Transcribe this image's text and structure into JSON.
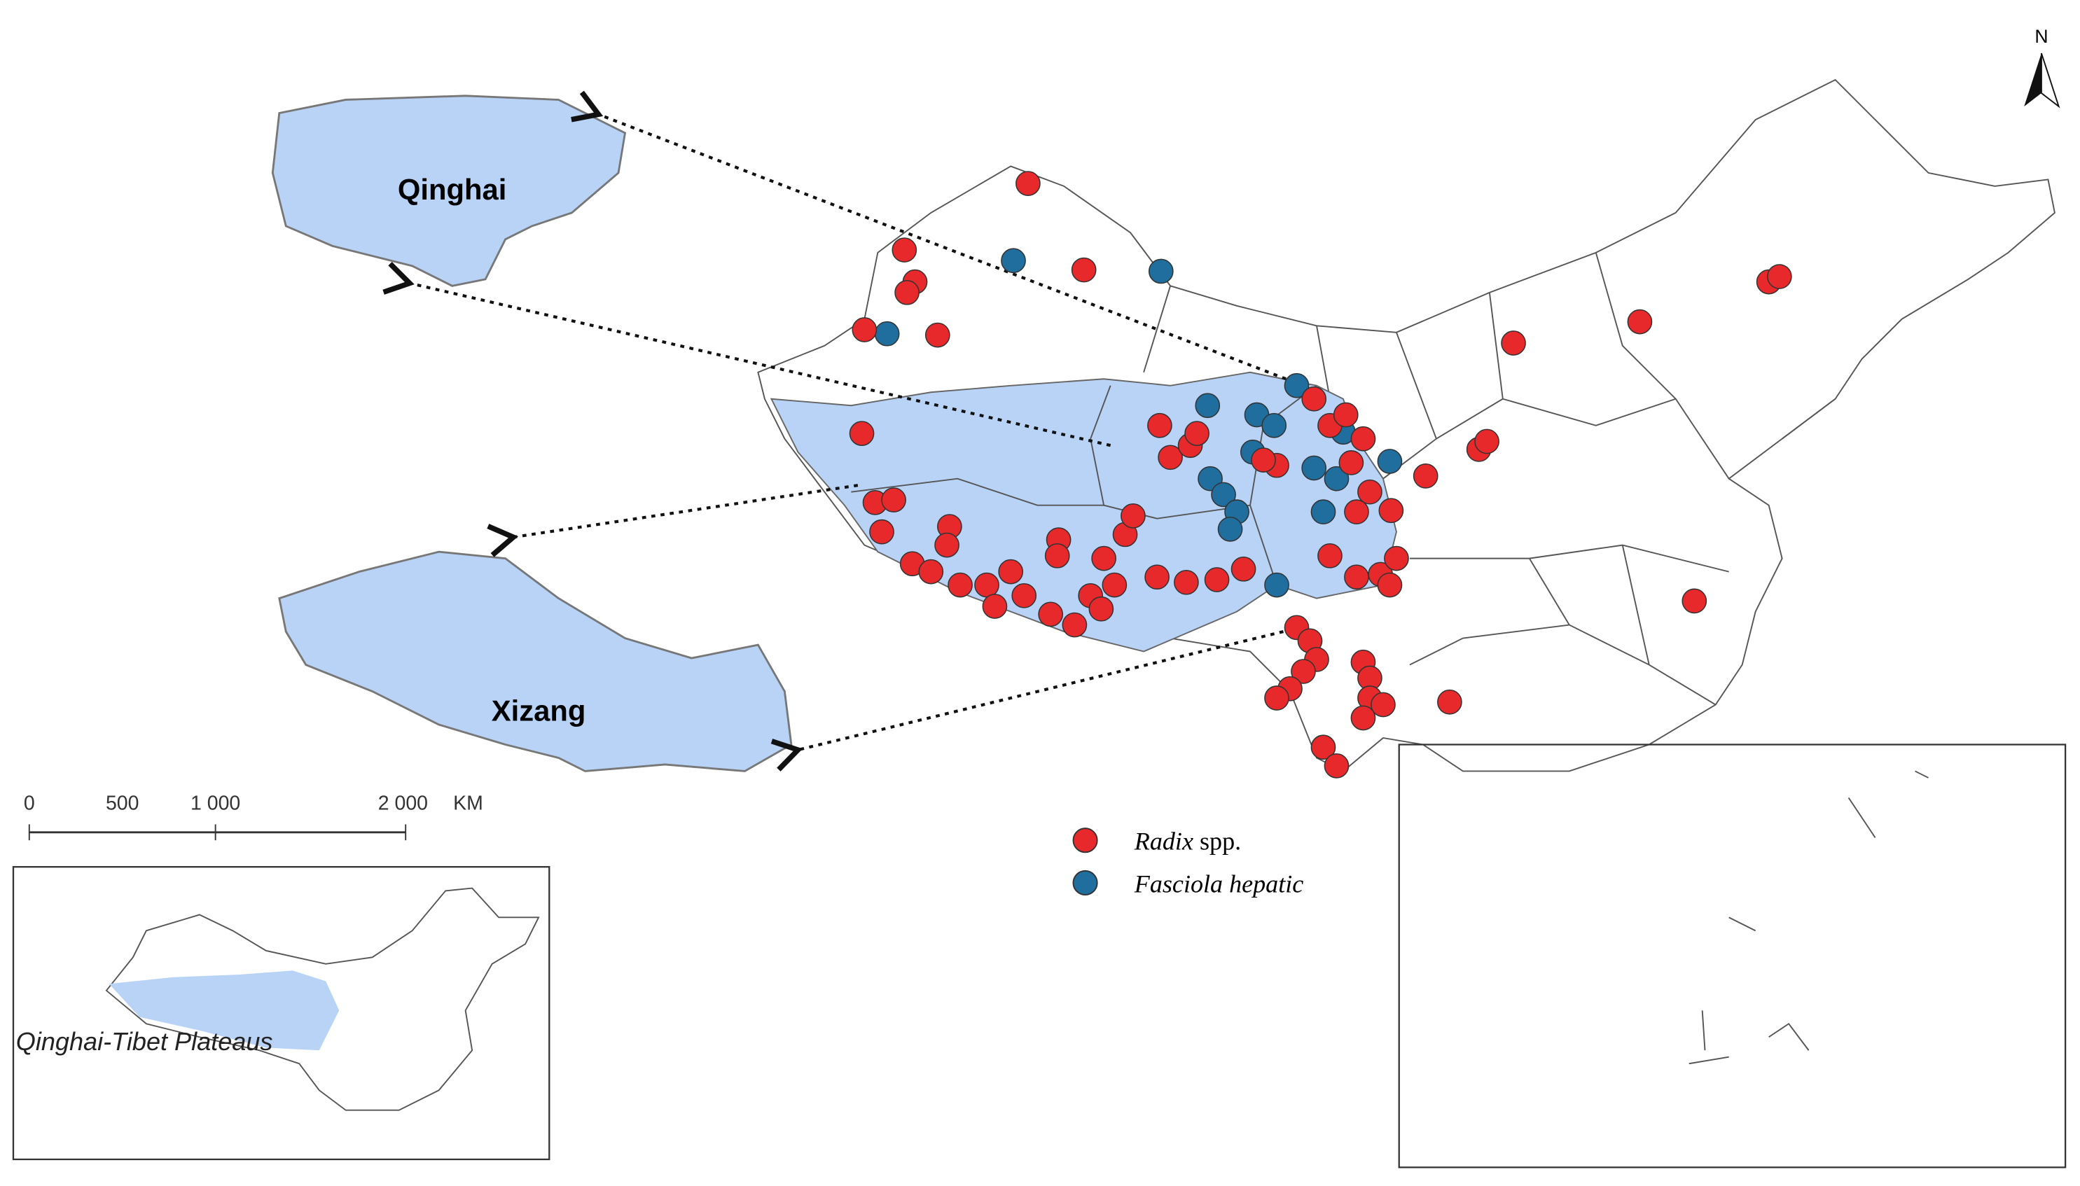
{
  "map": {
    "regions": [
      {
        "label": "Qinghai"
      },
      {
        "label": "Xizang"
      }
    ],
    "inset_label": "Qinghai-Tibet Plateaus",
    "scale_bar": {
      "ticks": [
        "0",
        "500",
        "1 000",
        "2 000"
      ],
      "unit": "KM"
    },
    "north_label": "N",
    "legend": [
      {
        "genus": "Radix",
        "rest": "spp.",
        "color": "#e8292b"
      },
      {
        "label": "Fasciola hepatic",
        "color": "#1f6e9e"
      }
    ],
    "plateau_color": "#b9d3f7"
  }
}
